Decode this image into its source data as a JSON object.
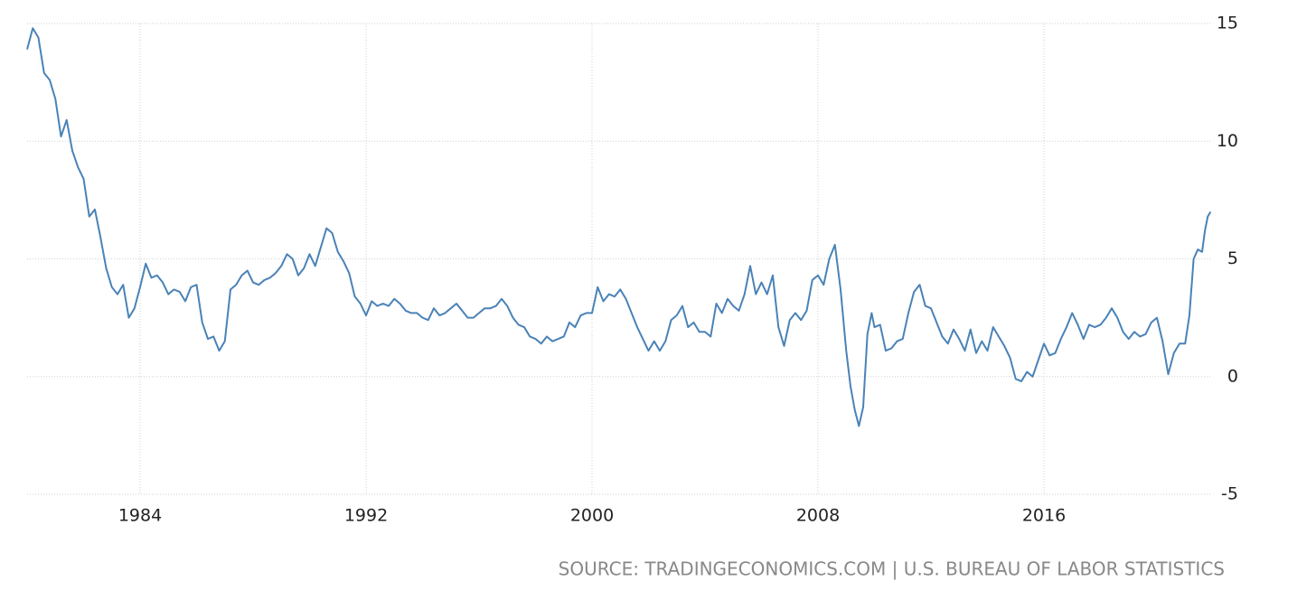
{
  "chart_data": {
    "type": "line",
    "source": "SOURCE: TRADINGECONOMICS.COM | U.S. BUREAU OF LABOR STATISTICS",
    "xlim": [
      1980,
      2021.92
    ],
    "xticks": [
      1984,
      1992,
      2000,
      2008,
      2016
    ],
    "ylim": [
      -5,
      15
    ],
    "yticks": [
      -5,
      0,
      5,
      10,
      15
    ],
    "grid": true,
    "series": [
      {
        "color": "#4a82b7",
        "x": [
          1980.0,
          1980.2,
          1980.4,
          1980.6,
          1980.8,
          1981.0,
          1981.2,
          1981.4,
          1981.6,
          1981.8,
          1982.0,
          1982.2,
          1982.4,
          1982.6,
          1982.8,
          1983.0,
          1983.2,
          1983.4,
          1983.6,
          1983.8,
          1984.0,
          1984.2,
          1984.4,
          1984.6,
          1984.8,
          1985.0,
          1985.2,
          1985.4,
          1985.6,
          1985.8,
          1986.0,
          1986.2,
          1986.4,
          1986.6,
          1986.8,
          1987.0,
          1987.2,
          1987.4,
          1987.6,
          1987.8,
          1988.0,
          1988.2,
          1988.4,
          1988.6,
          1988.8,
          1989.0,
          1989.2,
          1989.4,
          1989.6,
          1989.8,
          1990.0,
          1990.2,
          1990.4,
          1990.6,
          1990.8,
          1991.0,
          1991.2,
          1991.4,
          1991.6,
          1991.8,
          1992.0,
          1992.2,
          1992.4,
          1992.6,
          1992.8,
          1993.0,
          1993.2,
          1993.4,
          1993.6,
          1993.8,
          1994.0,
          1994.2,
          1994.4,
          1994.6,
          1994.8,
          1995.0,
          1995.2,
          1995.4,
          1995.6,
          1995.8,
          1996.0,
          1996.2,
          1996.4,
          1996.6,
          1996.8,
          1997.0,
          1997.2,
          1997.4,
          1997.6,
          1997.8,
          1998.0,
          1998.2,
          1998.4,
          1998.6,
          1998.8,
          1999.0,
          1999.2,
          1999.4,
          1999.6,
          1999.8,
          2000.0,
          2000.2,
          2000.4,
          2000.6,
          2000.8,
          2001.0,
          2001.2,
          2001.4,
          2001.6,
          2001.8,
          2002.0,
          2002.2,
          2002.4,
          2002.6,
          2002.8,
          2003.0,
          2003.2,
          2003.4,
          2003.6,
          2003.8,
          2004.0,
          2004.2,
          2004.4,
          2004.6,
          2004.8,
          2005.0,
          2005.2,
          2005.4,
          2005.6,
          2005.8,
          2006.0,
          2006.2,
          2006.4,
          2006.6,
          2006.8,
          2007.0,
          2007.2,
          2007.4,
          2007.6,
          2007.8,
          2008.0,
          2008.2,
          2008.4,
          2008.6,
          2008.8,
          2009.0,
          2009.15,
          2009.3,
          2009.45,
          2009.6,
          2009.75,
          2009.9,
          2010.0,
          2010.2,
          2010.4,
          2010.6,
          2010.8,
          2011.0,
          2011.2,
          2011.4,
          2011.6,
          2011.8,
          2012.0,
          2012.2,
          2012.4,
          2012.6,
          2012.8,
          2013.0,
          2013.2,
          2013.4,
          2013.6,
          2013.8,
          2014.0,
          2014.2,
          2014.4,
          2014.6,
          2014.8,
          2015.0,
          2015.2,
          2015.4,
          2015.6,
          2015.8,
          2016.0,
          2016.2,
          2016.4,
          2016.6,
          2016.8,
          2017.0,
          2017.2,
          2017.4,
          2017.6,
          2017.8,
          2018.0,
          2018.2,
          2018.4,
          2018.6,
          2018.8,
          2019.0,
          2019.2,
          2019.4,
          2019.6,
          2019.8,
          2020.0,
          2020.2,
          2020.4,
          2020.6,
          2020.8,
          2021.0,
          2021.15,
          2021.3,
          2021.45,
          2021.6,
          2021.7,
          2021.8,
          2021.9
        ],
        "values": [
          13.9,
          14.8,
          14.4,
          12.9,
          12.6,
          11.8,
          10.2,
          10.9,
          9.6,
          8.9,
          8.4,
          6.8,
          7.1,
          5.9,
          4.6,
          3.8,
          3.5,
          3.9,
          2.5,
          2.9,
          3.8,
          4.8,
          4.2,
          4.3,
          4.0,
          3.5,
          3.7,
          3.6,
          3.2,
          3.8,
          3.9,
          2.3,
          1.6,
          1.7,
          1.1,
          1.5,
          3.7,
          3.9,
          4.3,
          4.5,
          4.0,
          3.9,
          4.1,
          4.2,
          4.4,
          4.7,
          5.2,
          5.0,
          4.3,
          4.6,
          5.2,
          4.7,
          5.5,
          6.3,
          6.1,
          5.3,
          4.9,
          4.4,
          3.4,
          3.1,
          2.6,
          3.2,
          3.0,
          3.1,
          3.0,
          3.3,
          3.1,
          2.8,
          2.7,
          2.7,
          2.5,
          2.4,
          2.9,
          2.6,
          2.7,
          2.9,
          3.1,
          2.8,
          2.5,
          2.5,
          2.7,
          2.9,
          2.9,
          3.0,
          3.3,
          3.0,
          2.5,
          2.2,
          2.1,
          1.7,
          1.6,
          1.4,
          1.7,
          1.5,
          1.6,
          1.7,
          2.3,
          2.1,
          2.6,
          2.7,
          2.7,
          3.8,
          3.2,
          3.5,
          3.4,
          3.7,
          3.3,
          2.7,
          2.1,
          1.6,
          1.1,
          1.5,
          1.1,
          1.5,
          2.4,
          2.6,
          3.0,
          2.1,
          2.3,
          1.9,
          1.9,
          1.7,
          3.1,
          2.7,
          3.3,
          3.0,
          2.8,
          3.5,
          4.7,
          3.5,
          4.0,
          3.5,
          4.3,
          2.1,
          1.3,
          2.4,
          2.7,
          2.4,
          2.8,
          4.1,
          4.3,
          3.9,
          5.0,
          5.6,
          3.7,
          1.1,
          -0.4,
          -1.4,
          -2.1,
          -1.3,
          1.8,
          2.7,
          2.1,
          2.2,
          1.1,
          1.2,
          1.5,
          1.6,
          2.7,
          3.6,
          3.9,
          3.0,
          2.9,
          2.3,
          1.7,
          1.4,
          2.0,
          1.6,
          1.1,
          2.0,
          1.0,
          1.5,
          1.1,
          2.1,
          1.7,
          1.3,
          0.8,
          -0.1,
          -0.2,
          0.2,
          0.0,
          0.7,
          1.4,
          0.9,
          1.0,
          1.6,
          2.1,
          2.7,
          2.2,
          1.6,
          2.2,
          2.1,
          2.2,
          2.5,
          2.9,
          2.5,
          1.9,
          1.6,
          1.9,
          1.7,
          1.8,
          2.3,
          2.5,
          1.5,
          0.1,
          1.0,
          1.4,
          1.4,
          2.6,
          5.0,
          5.4,
          5.3,
          6.2,
          6.8,
          7.0
        ]
      }
    ]
  }
}
